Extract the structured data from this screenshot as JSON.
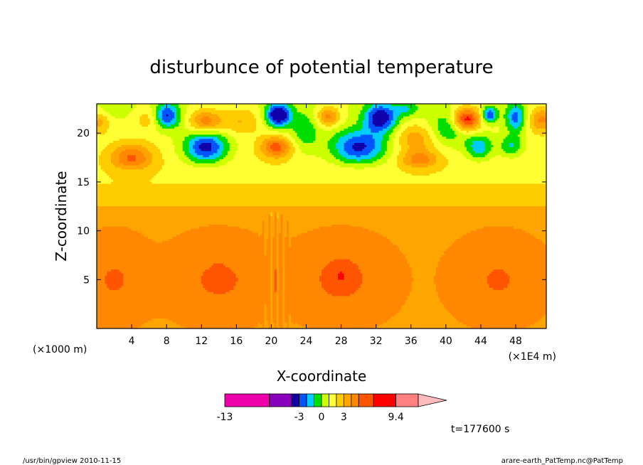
{
  "chart_data": {
    "type": "heatmap",
    "title": "disturbunce of potential temperature",
    "xlabel": "X-coordinate",
    "ylabel": "Z-coordinate",
    "x_unit_left": "(×1000 m)",
    "x_unit_right": "(×1E4 m)",
    "xlim": [
      0,
      51.5
    ],
    "ylim": [
      0,
      23
    ],
    "x_ticks": [
      4,
      8,
      12,
      16,
      20,
      24,
      28,
      32,
      36,
      40,
      44,
      48
    ],
    "y_ticks": [
      5,
      10,
      15,
      20
    ],
    "time_label": "t=177600 s",
    "colorbar": {
      "levels": [
        -13,
        -7,
        -4,
        -3,
        -2,
        -1,
        0,
        1,
        2,
        3,
        4,
        5,
        8,
        9.4
      ],
      "colors": [
        "#ee00aa",
        "#8800bb",
        "#1100aa",
        "#0055ff",
        "#00ccff",
        "#00dd00",
        "#ccff00",
        "#ffff33",
        "#ffcc00",
        "#ffa500",
        "#ff8800",
        "#ff5500",
        "#ff0000",
        "#ff8080",
        "#ffbbbb"
      ],
      "tick_labels": [
        "-13",
        "-3",
        "0",
        "3",
        "9.4"
      ],
      "tick_values": [
        -13,
        -3,
        0,
        3,
        9.4
      ]
    },
    "field_description": "stable warm anomaly (+2 to +4) in lower atmosphere, +1 to +2 around 11-15 km, strong mixed positive/negative anomalies between 16 and 23 km; narrow vertical disturbance near x=20-21"
  },
  "footer": {
    "left": "/usr/bin/gpview  2010-11-15",
    "right": "arare-earth_PatTemp.nc@PatTemp"
  }
}
